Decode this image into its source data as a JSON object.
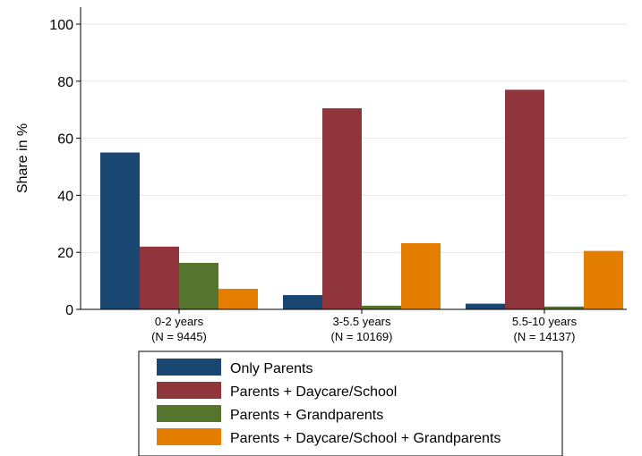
{
  "chart_data": {
    "type": "bar",
    "title": "",
    "xlabel": "",
    "ylabel": "Share in %",
    "ylim": [
      0,
      100
    ],
    "yticks": [
      0,
      20,
      40,
      60,
      80,
      100
    ],
    "grid": true,
    "legend_position": "bottom",
    "categories": [
      "0-2 years",
      "3-5.5 years",
      "5.5-10 years"
    ],
    "category_sublabels": [
      "(N = 9445)",
      "(N = 10169)",
      "(N = 14137)"
    ],
    "series": [
      {
        "name": "Only Parents",
        "color": "#1a4672",
        "values": [
          55,
          5,
          2
        ]
      },
      {
        "name": "Parents + Daycare/School",
        "color": "#90353b",
        "values": [
          22,
          70.5,
          77
        ]
      },
      {
        "name": "Parents + Grandparents",
        "color": "#55752f",
        "values": [
          16.3,
          1.3,
          1.0
        ]
      },
      {
        "name": "Parents + Daycare/School + Grandparents",
        "color": "#e37e00",
        "values": [
          7.2,
          23.2,
          20.5
        ]
      }
    ]
  }
}
